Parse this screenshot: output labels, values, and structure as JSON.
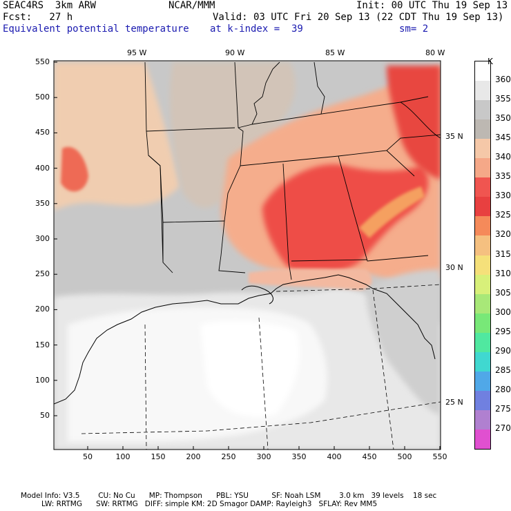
{
  "header": {
    "project": "SEAC4RS",
    "model": "3km ARW",
    "org": "NCAR/MMM",
    "init": "Init: 00 UTC Thu 19 Sep 13",
    "fcst": "Fcst:   27 h",
    "valid": "Valid: 03 UTC Fri 20 Sep 13 (22 CDT Thu 19 Sep 13)",
    "field": "Equivalent potential temperature",
    "level": "at k-index =  39",
    "smooth": "sm= 2"
  },
  "map": {
    "lon_labels": [
      "95 W",
      "90 W",
      "85 W",
      "80 W"
    ],
    "lat_labels": [
      "35 N",
      "30 N",
      "25 N"
    ],
    "y_ticks": [
      "550",
      "500",
      "450",
      "400",
      "350",
      "300",
      "250",
      "200",
      "150",
      "100",
      "50"
    ],
    "x_ticks": [
      "50",
      "100",
      "150",
      "200",
      "250",
      "300",
      "350",
      "400",
      "450",
      "500",
      "550"
    ]
  },
  "colorbar": {
    "unit": "K",
    "levels": [
      "360",
      "355",
      "350",
      "345",
      "340",
      "335",
      "330",
      "325",
      "320",
      "315",
      "310",
      "305",
      "300",
      "295",
      "290",
      "285",
      "280",
      "275",
      "270"
    ],
    "colors": [
      "#ffffff",
      "#e8e8e8",
      "#c8c8c8",
      "#bdb8b2",
      "#f5c8a8",
      "#f5a888",
      "#f05550",
      "#e84040",
      "#f58a5a",
      "#f5c080",
      "#f5e07a",
      "#d8f07a",
      "#a8e878",
      "#78e878",
      "#50e8a0",
      "#40d8d0",
      "#50a8e8",
      "#7080e0",
      "#b080d0",
      "#e050d0"
    ]
  },
  "footer": {
    "line1": "Model Info: V3.5        CU: No Cu      MP: Thompson      PBL: YSU          SF: Noah LSM        3.0 km   39 levels    18 sec",
    "line2": "         LW: RRTMG      SW: RRTMG   DIFF: simple KM: 2D Smagor DAMP: Rayleigh3   SFLAY: Rev MM5"
  }
}
